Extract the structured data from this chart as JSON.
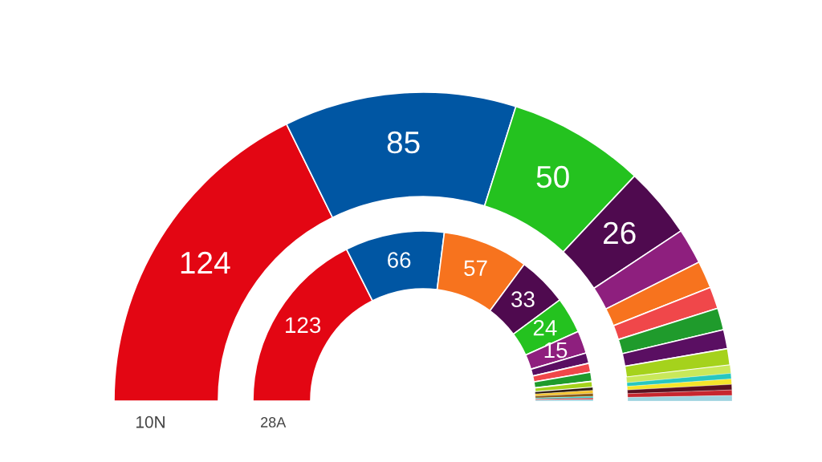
{
  "chart_data": {
    "type": "donut",
    "categories": [
      null,
      null,
      null,
      null,
      null,
      null,
      null,
      null,
      null,
      null,
      null,
      null,
      null,
      null,
      null,
      null
    ],
    "series": [
      {
        "name": "10N",
        "values": [
          124,
          85,
          50,
          26,
          13,
          10,
          8,
          8,
          7,
          6,
          3,
          2,
          2,
          2,
          2,
          2
        ],
        "value_labels": [
          "124",
          "85",
          "50",
          "26",
          null,
          null,
          null,
          null,
          null,
          null,
          null,
          null,
          null,
          null,
          null,
          null
        ],
        "colors": [
          "#e30613",
          "#0056a3",
          "#24c21f",
          "#4f0a4f",
          "#8e1f7e",
          "#f7731e",
          "#f0474a",
          "#1f9b2c",
          "#5a0f62",
          "#a5d21c",
          "#c9e85a",
          "#27c7c0",
          "#f5e52a",
          "#5a1020",
          "#c7262e",
          "#9ed3e0"
        ]
      },
      {
        "name": "28A",
        "values": [
          123,
          66,
          57,
          33,
          24,
          15,
          7,
          6,
          6,
          4,
          2,
          2,
          2,
          1,
          1,
          1
        ],
        "value_labels": [
          "123",
          "66",
          "57",
          "33",
          "24",
          "15",
          null,
          null,
          null,
          null,
          null,
          null,
          null,
          null,
          null,
          null
        ],
        "colors": [
          "#e30613",
          "#0056a3",
          "#f7731e",
          "#4f0a4f",
          "#24c21f",
          "#8e1f7e",
          "#5a0f62",
          "#f0474a",
          "#1f9b2c",
          "#a5d21c",
          "#2b1a10",
          "#f5c42a",
          "#8a5a1a",
          "#27c7c0",
          "#c7262e",
          "#9ed3e0"
        ]
      }
    ]
  }
}
